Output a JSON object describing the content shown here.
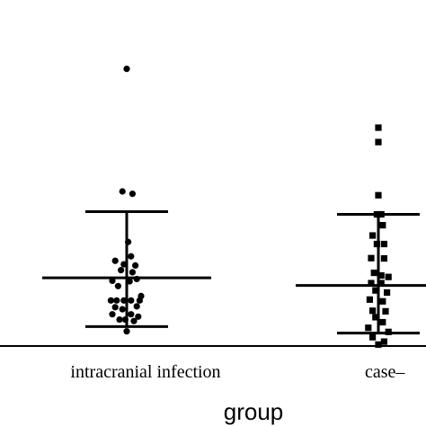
{
  "chart_data": {
    "type": "scatter",
    "xlabel": "group",
    "ylabel": "",
    "categories": [
      "intracranial infection",
      "case–"
    ],
    "ylim": [
      0,
      10
    ],
    "grid": false,
    "series": [
      {
        "marker": "circle",
        "color": "#000000",
        "points": [
          {
            "x": 0.0,
            "y": 9.43
          },
          {
            "x": -0.03,
            "y": 5.26
          },
          {
            "x": 0.04,
            "y": 5.18
          },
          {
            "x": 0.01,
            "y": 3.54
          },
          {
            "x": 0.03,
            "y": 3.05
          },
          {
            "x": -0.08,
            "y": 2.9
          },
          {
            "x": -0.02,
            "y": 2.78
          },
          {
            "x": 0.06,
            "y": 2.74
          },
          {
            "x": -0.04,
            "y": 2.58
          },
          {
            "x": 0.04,
            "y": 2.51
          },
          {
            "x": -0.1,
            "y": 2.22
          },
          {
            "x": 0.02,
            "y": 2.2
          },
          {
            "x": 0.07,
            "y": 2.28
          },
          {
            "x": -0.06,
            "y": 2.04
          },
          {
            "x": 0.1,
            "y": 1.7
          },
          {
            "x": -0.11,
            "y": 1.55
          },
          {
            "x": -0.07,
            "y": 1.55
          },
          {
            "x": -0.02,
            "y": 1.55
          },
          {
            "x": 0.03,
            "y": 1.55
          },
          {
            "x": 0.09,
            "y": 1.55
          },
          {
            "x": -0.08,
            "y": 1.32
          },
          {
            "x": 0.07,
            "y": 1.35
          },
          {
            "x": -0.03,
            "y": 1.25
          },
          {
            "x": -0.1,
            "y": 1.08
          },
          {
            "x": 0.03,
            "y": 1.08
          },
          {
            "x": 0.08,
            "y": 1.0
          },
          {
            "x": -0.05,
            "y": 0.9
          },
          {
            "x": -0.01,
            "y": 0.9
          },
          {
            "x": 0.05,
            "y": 0.85
          },
          {
            "x": 0.0,
            "y": 0.5
          }
        ],
        "mean": 2.32,
        "sd_upper": 4.57,
        "sd_lower": 0.66
      },
      {
        "marker": "square",
        "color": "#000000",
        "points": [
          {
            "x": 0.0,
            "y": 7.43
          },
          {
            "x": 0.0,
            "y": 6.94
          },
          {
            "x": 0.0,
            "y": 5.13
          },
          {
            "x": -0.01,
            "y": 4.48
          },
          {
            "x": 0.02,
            "y": 4.48
          },
          {
            "x": 0.03,
            "y": 4.11
          },
          {
            "x": -0.04,
            "y": 3.76
          },
          {
            "x": 0.04,
            "y": 3.47
          },
          {
            "x": -0.01,
            "y": 3.47
          },
          {
            "x": -0.05,
            "y": 2.99
          },
          {
            "x": 0.04,
            "y": 2.98
          },
          {
            "x": -0.03,
            "y": 2.49
          },
          {
            "x": 0.02,
            "y": 2.4
          },
          {
            "x": 0.07,
            "y": 2.35
          },
          {
            "x": -0.05,
            "y": 2.14
          },
          {
            "x": 0.02,
            "y": 2.14
          },
          {
            "x": -0.02,
            "y": 1.89
          },
          {
            "x": 0.06,
            "y": 1.82
          },
          {
            "x": -0.06,
            "y": 1.58
          },
          {
            "x": 0.03,
            "y": 1.52
          },
          {
            "x": -0.04,
            "y": 1.2
          },
          {
            "x": 0.05,
            "y": 1.18
          },
          {
            "x": -0.02,
            "y": 0.98
          },
          {
            "x": 0.03,
            "y": 0.81
          },
          {
            "x": -0.07,
            "y": 0.62
          },
          {
            "x": 0.07,
            "y": 0.48
          },
          {
            "x": -0.04,
            "y": 0.3
          },
          {
            "x": 0.04,
            "y": 0.15
          },
          {
            "x": 0.0,
            "y": 0.05
          }
        ],
        "mean": 2.06,
        "sd_upper": 4.48,
        "sd_lower": 0.44
      }
    ]
  }
}
